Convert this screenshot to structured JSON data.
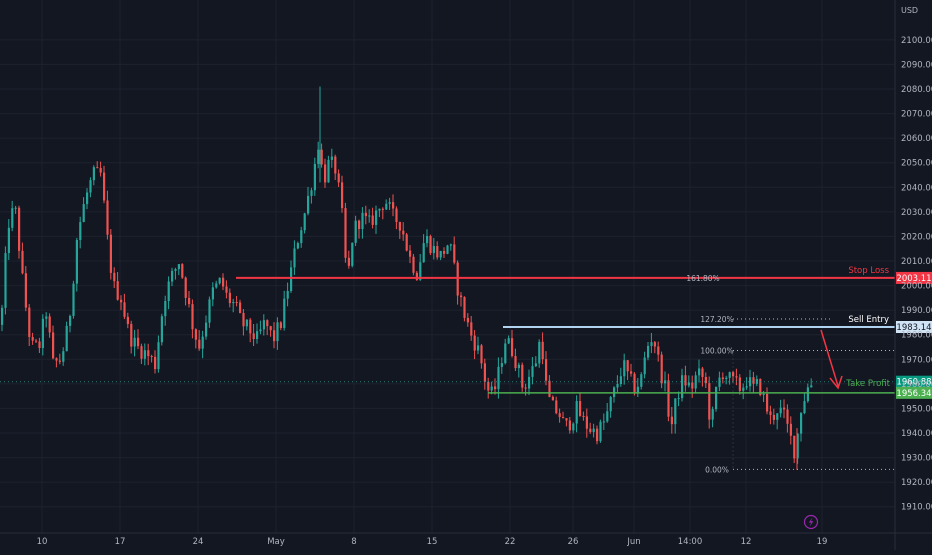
{
  "currency_label": "USD",
  "colors": {
    "background": "#131722",
    "grid": "#1e222d",
    "up": "#26a69a",
    "down": "#ef5350",
    "stop_loss": "#f23645",
    "sell_entry": "#b2d3ef",
    "take_profit": "#4caf50",
    "arrow": "#f23645",
    "fib": "#b2b5be"
  },
  "chart_data": {
    "type": "candlestick",
    "ylim": [
      1905,
      2115
    ],
    "y_ticks": [
      1910,
      1920,
      1930,
      1940,
      1950,
      1960,
      1970,
      1980,
      1990,
      2000,
      2010,
      2020,
      2030,
      2040,
      2050,
      2060,
      2070,
      2080,
      2090,
      2100
    ],
    "y_tick_labels": [
      "1910.00",
      "1920.00",
      "1930.00",
      "1940.00",
      "1950.00",
      "1960.00",
      "1970.00",
      "1980.00",
      "1990.00",
      "2000.00",
      "2010.00",
      "2020.00",
      "2030.00",
      "2040.00",
      "2050.00",
      "2060.00",
      "2070.00",
      "2080.00",
      "2090.00",
      "2100.00"
    ],
    "x_tick_labels": [
      "10",
      "17",
      "24",
      "May",
      "8",
      "15",
      "22",
      "26",
      "Jun",
      "14:00",
      "12",
      "19"
    ],
    "levels": [
      {
        "name": "Stop Loss",
        "value": 2003.11,
        "label": "2003.11",
        "fib": "161.80%"
      },
      {
        "name": "Sell Entry",
        "value": 1983.14,
        "label": "1983.14",
        "fib": "127.20%"
      },
      {
        "name": "Take Profit",
        "value": 1956.34,
        "label": "1956.34"
      }
    ],
    "fib_levels": [
      {
        "label": "100.00%",
        "value": 1973.6
      },
      {
        "label": "0.00%",
        "value": 1925.2
      }
    ],
    "current_price": {
      "value": 1960.88,
      "label": "1960.88"
    },
    "anchors": [
      [
        0,
        1984
      ],
      [
        7,
        2025
      ],
      [
        14,
        2032
      ],
      [
        22,
        2000
      ],
      [
        30,
        1975
      ],
      [
        38,
        1975
      ],
      [
        45,
        1990
      ],
      [
        52,
        1968
      ],
      [
        60,
        1970
      ],
      [
        68,
        1985
      ],
      [
        76,
        2020
      ],
      [
        84,
        2035
      ],
      [
        92,
        2045
      ],
      [
        100,
        2045
      ],
      [
        106,
        2020
      ],
      [
        112,
        2000
      ],
      [
        120,
        1995
      ],
      [
        128,
        1980
      ],
      [
        136,
        1975
      ],
      [
        146,
        1972
      ],
      [
        154,
        1968
      ],
      [
        163,
        1995
      ],
      [
        170,
        2003
      ],
      [
        178,
        2010
      ],
      [
        186,
        1995
      ],
      [
        192,
        1983
      ],
      [
        198,
        1975
      ],
      [
        204,
        1985
      ],
      [
        212,
        1998
      ],
      [
        220,
        2002
      ],
      [
        226,
        1995
      ],
      [
        234,
        1992
      ],
      [
        240,
        1985
      ],
      [
        248,
        1982
      ],
      [
        256,
        1978
      ],
      [
        264,
        1985
      ],
      [
        272,
        1978
      ],
      [
        280,
        1985
      ],
      [
        288,
        2002
      ],
      [
        296,
        2018
      ],
      [
        304,
        2030
      ],
      [
        312,
        2045
      ],
      [
        318,
        2060
      ],
      [
        322,
        2042
      ],
      [
        328,
        2050
      ],
      [
        334,
        2048
      ],
      [
        338,
        2038
      ],
      [
        342,
        2025
      ],
      [
        346,
        2000
      ],
      [
        352,
        2022
      ],
      [
        360,
        2028
      ],
      [
        368,
        2025
      ],
      [
        376,
        2030
      ],
      [
        384,
        2035
      ],
      [
        392,
        2028
      ],
      [
        400,
        2025
      ],
      [
        408,
        2012
      ],
      [
        416,
        2005
      ],
      [
        424,
        2020
      ],
      [
        432,
        2015
      ],
      [
        440,
        2012
      ],
      [
        448,
        2018
      ],
      [
        456,
        2000
      ],
      [
        462,
        1990
      ],
      [
        470,
        1980
      ],
      [
        478,
        1973
      ],
      [
        486,
        1958
      ],
      [
        492,
        1955
      ],
      [
        498,
        1965
      ],
      [
        504,
        1978
      ],
      [
        510,
        1975
      ],
      [
        516,
        1968
      ],
      [
        522,
        1958
      ],
      [
        528,
        1963
      ],
      [
        534,
        1968
      ],
      [
        540,
        1980
      ],
      [
        546,
        1955
      ],
      [
        552,
        1950
      ],
      [
        558,
        1948
      ],
      [
        564,
        1942
      ],
      [
        570,
        1945
      ],
      [
        576,
        1950
      ],
      [
        582,
        1945
      ],
      [
        588,
        1942
      ],
      [
        596,
        1940
      ],
      [
        604,
        1945
      ],
      [
        610,
        1953
      ],
      [
        616,
        1960
      ],
      [
        622,
        1968
      ],
      [
        628,
        1962
      ],
      [
        634,
        1958
      ],
      [
        640,
        1962
      ],
      [
        646,
        1975
      ],
      [
        652,
        1980
      ],
      [
        658,
        1968
      ],
      [
        664,
        1958
      ],
      [
        670,
        1942
      ],
      [
        676,
        1955
      ],
      [
        682,
        1962
      ],
      [
        690,
        1958
      ],
      [
        696,
        1964
      ],
      [
        704,
        1962
      ],
      [
        710,
        1942
      ],
      [
        716,
        1960
      ],
      [
        722,
        1965
      ],
      [
        728,
        1962
      ],
      [
        734,
        1960
      ],
      [
        740,
        1958
      ],
      [
        746,
        1962
      ],
      [
        752,
        1958
      ],
      [
        758,
        1960
      ],
      [
        764,
        1952
      ],
      [
        770,
        1945
      ],
      [
        776,
        1950
      ],
      [
        782,
        1948
      ],
      [
        788,
        1940
      ],
      [
        794,
        1932
      ],
      [
        800,
        1950
      ],
      [
        806,
        1958
      ],
      [
        812,
        1961
      ]
    ]
  }
}
